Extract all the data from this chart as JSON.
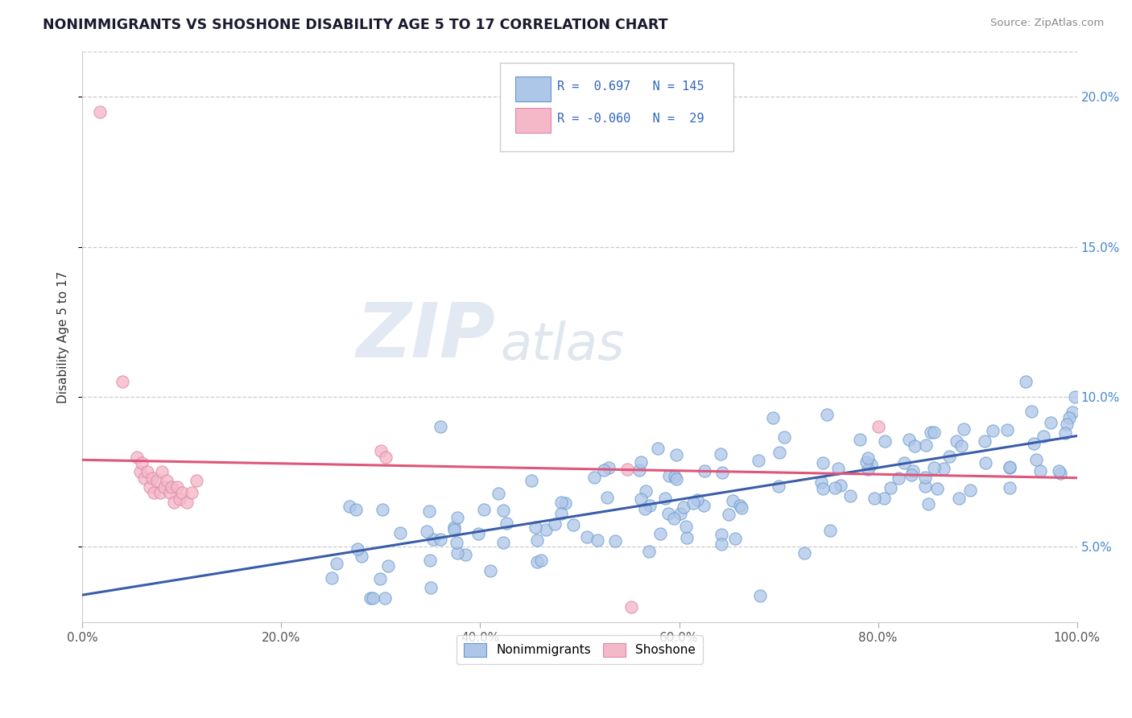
{
  "title": "NONIMMIGRANTS VS SHOSHONE DISABILITY AGE 5 TO 17 CORRELATION CHART",
  "source": "Source: ZipAtlas.com",
  "ylabel": "Disability Age 5 to 17",
  "watermark_zip": "ZIP",
  "watermark_atlas": "atlas",
  "xlim": [
    0.0,
    1.0
  ],
  "ylim": [
    0.025,
    0.215
  ],
  "x_tick_vals": [
    0.0,
    0.2,
    0.4,
    0.6,
    0.8,
    1.0
  ],
  "x_tick_labels": [
    "0.0%",
    "20.0%",
    "40.0%",
    "60.0%",
    "80.0%",
    "100.0%"
  ],
  "y_tick_vals": [
    0.05,
    0.1,
    0.15,
    0.2
  ],
  "y_tick_labels": [
    "5.0%",
    "10.0%",
    "15.0%",
    "20.0%"
  ],
  "blue_color": "#aec6e8",
  "blue_edge": "#6699cc",
  "blue_line": "#3a5da8",
  "pink_color": "#f4b8c8",
  "pink_edge": "#dd88aa",
  "pink_line": "#e0557a",
  "background": "#ffffff",
  "grid_color": "#cccccc",
  "R_blue": 0.697,
  "N_blue": 145,
  "R_pink": -0.06,
  "N_pink": 29,
  "legend_label_blue": "Nonimmigrants",
  "legend_label_pink": "Shoshone",
  "blue_line_x": [
    0.0,
    1.0
  ],
  "blue_line_y": [
    0.034,
    0.087
  ],
  "pink_line_x": [
    0.0,
    1.0
  ],
  "pink_line_y": [
    0.079,
    0.073
  ]
}
